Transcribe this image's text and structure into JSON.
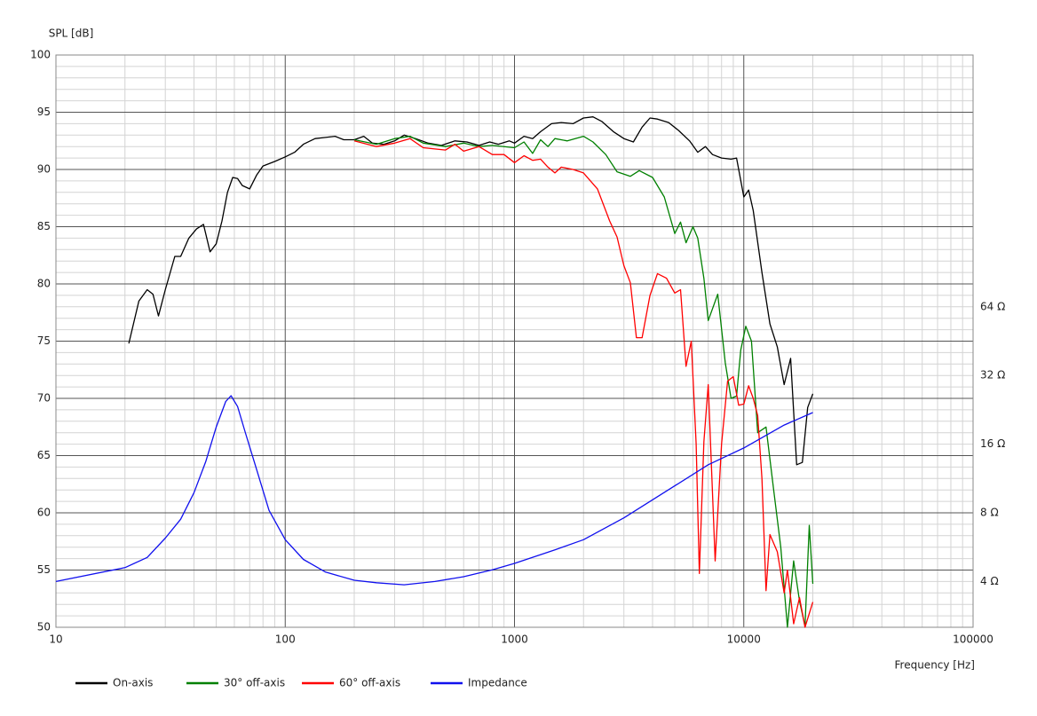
{
  "chart_data": {
    "type": "line",
    "y_label": "SPL [dB]",
    "x_label": "Frequency [Hz]",
    "xscale": "log",
    "xlim": [
      10,
      100000
    ],
    "xticks": [
      10,
      100,
      1000,
      10000,
      100000
    ],
    "ylim": [
      50,
      100
    ],
    "yticks": [
      50,
      55,
      60,
      65,
      70,
      75,
      80,
      85,
      90,
      95,
      100
    ],
    "y2scale": "log",
    "y2lim": [
      2.52,
      812.7
    ],
    "y2ticks": [
      {
        "value": 4,
        "label": "4 Ω"
      },
      {
        "value": 8,
        "label": "8 Ω"
      },
      {
        "value": 16,
        "label": "16 Ω"
      },
      {
        "value": 32,
        "label": "32 Ω"
      },
      {
        "value": 64,
        "label": "64 Ω"
      }
    ],
    "grid": true,
    "legend": "bottom",
    "series": [
      {
        "name": "On-axis",
        "color": "#000000",
        "x": [
          20.8,
          23,
          25,
          26.5,
          28,
          30,
          33,
          35,
          38,
          41,
          44,
          47,
          50,
          53,
          56,
          59,
          62,
          65,
          70,
          75,
          80,
          90,
          100,
          110,
          120,
          135,
          150,
          165,
          180,
          200,
          220,
          240,
          270,
          300,
          330,
          370,
          420,
          480,
          550,
          620,
          700,
          780,
          850,
          950,
          1000,
          1100,
          1200,
          1300,
          1450,
          1600,
          1800,
          2000,
          2200,
          2400,
          2700,
          3000,
          3300,
          3600,
          3900,
          4200,
          4700,
          5200,
          5800,
          6300,
          6800,
          7300,
          8000,
          8800,
          9300,
          10000,
          10500,
          11000,
          12000,
          13000,
          14000,
          15000,
          16000,
          17000,
          18000,
          19000,
          20000
        ],
        "values": [
          74.8,
          78.5,
          79.5,
          79.1,
          77.2,
          79.5,
          82.4,
          82.4,
          84,
          84.8,
          85.2,
          82.8,
          83.5,
          85.5,
          88,
          89.3,
          89.2,
          88.6,
          88.3,
          89.5,
          90.3,
          90.7,
          91.1,
          91.5,
          92.2,
          92.7,
          92.8,
          92.9,
          92.6,
          92.6,
          92.9,
          92.3,
          92.2,
          92.5,
          93,
          92.7,
          92.3,
          92.1,
          92.5,
          92.4,
          92.1,
          92.4,
          92.2,
          92.5,
          92.3,
          92.9,
          92.7,
          93.3,
          94,
          94.1,
          94,
          94.5,
          94.6,
          94.2,
          93.3,
          92.7,
          92.4,
          93.7,
          94.5,
          94.4,
          94.1,
          93.4,
          92.5,
          91.5,
          92,
          91.3,
          91,
          90.9,
          91,
          87.6,
          88.2,
          86.4,
          81,
          76.5,
          74.5,
          71.2,
          73.5,
          64.2,
          64.4,
          69.2,
          70.4
        ]
      },
      {
        "name": "30° off-axis",
        "color": "#008000",
        "x": [
          200,
          250,
          300,
          350,
          400,
          500,
          600,
          700,
          800,
          1000,
          1100,
          1200,
          1300,
          1400,
          1500,
          1700,
          2000,
          2200,
          2500,
          2800,
          3200,
          3500,
          4000,
          4500,
          5000,
          5300,
          5600,
          6000,
          6300,
          6700,
          7000,
          7700,
          8300,
          8800,
          9300,
          9700,
          10200,
          10800,
          11500,
          12500,
          13500,
          14500,
          15500,
          16500,
          17500,
          18500,
          19300,
          20000
        ],
        "values": [
          92.6,
          92.2,
          92.7,
          92.9,
          92.3,
          92,
          92.3,
          92,
          92.1,
          91.9,
          92.4,
          91.4,
          92.6,
          92,
          92.7,
          92.5,
          92.9,
          92.4,
          91.3,
          89.8,
          89.4,
          89.9,
          89.3,
          87.6,
          84.4,
          85.4,
          83.6,
          85,
          84,
          80.5,
          76.8,
          79.1,
          73.1,
          70,
          70.2,
          74.2,
          76.3,
          75,
          67,
          67.5,
          62,
          57,
          50,
          55.8,
          52.3,
          50.1,
          58.9,
          53.8
        ]
      },
      {
        "name": "60° off-axis",
        "color": "#ff0000",
        "x": [
          200,
          250,
          300,
          350,
          400,
          500,
          550,
          600,
          700,
          800,
          900,
          1000,
          1100,
          1200,
          1300,
          1400,
          1500,
          1600,
          1800,
          2000,
          2300,
          2600,
          2800,
          3000,
          3200,
          3400,
          3600,
          3900,
          4200,
          4600,
          5000,
          5300,
          5600,
          5900,
          6200,
          6400,
          6700,
          7000,
          7500,
          8000,
          8500,
          9000,
          9500,
          10000,
          10500,
          11000,
          11500,
          12000,
          12500,
          13000,
          14000,
          15000,
          15500,
          16500,
          17500,
          18500,
          20000
        ],
        "values": [
          92.5,
          92,
          92.3,
          92.7,
          91.9,
          91.7,
          92.2,
          91.6,
          92,
          91.3,
          91.3,
          90.6,
          91.2,
          90.8,
          90.9,
          90.2,
          89.7,
          90.2,
          90,
          89.7,
          88.3,
          85.5,
          84.1,
          81.6,
          80.1,
          75.3,
          75.3,
          79,
          80.9,
          80.5,
          79.2,
          79.5,
          72.8,
          75,
          66,
          54.7,
          66.2,
          71.2,
          55.8,
          66,
          71.5,
          71.9,
          69.4,
          69.5,
          71.1,
          70,
          68.5,
          63,
          53.2,
          58.1,
          56.6,
          53,
          55,
          50.3,
          52.6,
          50,
          52.2
        ]
      },
      {
        "name": "Impedance",
        "color": "#1010ee",
        "axis": "y2",
        "x": [
          10,
          20,
          25,
          30,
          35,
          40,
          45,
          50,
          55,
          58,
          62,
          67,
          75,
          85,
          100,
          120,
          150,
          200,
          250,
          330,
          450,
          600,
          800,
          1000,
          1500,
          2000,
          3000,
          5000,
          7000,
          10000,
          15000,
          20000
        ],
        "values": [
          4,
          4.6,
          5.1,
          6.2,
          7.5,
          9.8,
          13.4,
          19,
          24.6,
          26.1,
          23.4,
          18,
          12.4,
          8.2,
          6.1,
          5,
          4.4,
          4.05,
          3.95,
          3.87,
          4,
          4.2,
          4.5,
          4.8,
          5.5,
          6.1,
          7.6,
          10.5,
          13,
          15.4,
          19.4,
          22
        ]
      }
    ]
  }
}
